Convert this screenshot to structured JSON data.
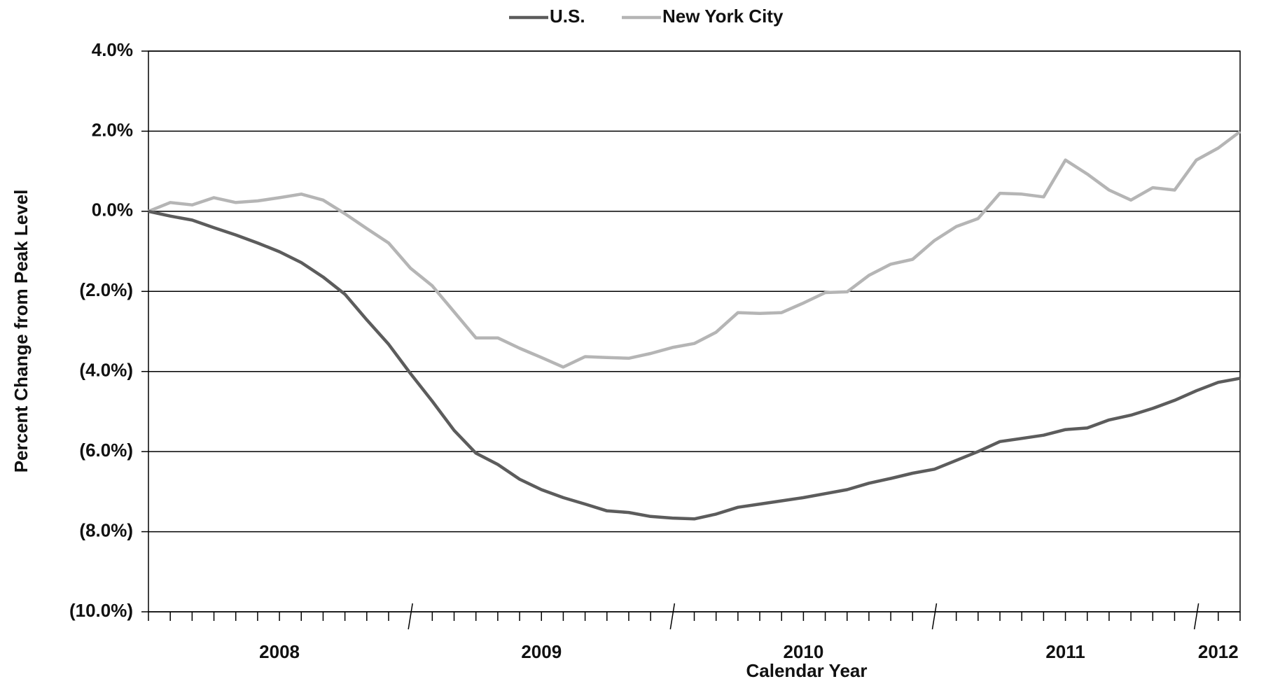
{
  "chart_data": {
    "type": "line",
    "x_label": "Calendar Year",
    "y_label": "Percent Change from Peak Level",
    "categories": [
      null,
      null,
      null,
      null,
      null,
      null,
      "2008",
      null,
      null,
      null,
      null,
      null,
      null,
      null,
      null,
      null,
      null,
      null,
      "2009",
      null,
      null,
      null,
      null,
      null,
      null,
      null,
      null,
      null,
      null,
      null,
      "2010",
      null,
      null,
      null,
      null,
      null,
      null,
      null,
      null,
      null,
      null,
      null,
      "2011",
      null,
      null,
      null,
      null,
      null,
      null,
      "2012",
      null
    ],
    "series": [
      {
        "name": "U.S.",
        "color": "#5c5c5c",
        "values": [
          0,
          -0.12,
          -0.22,
          -0.41,
          -0.59,
          -0.79,
          -1.01,
          -1.28,
          -1.64,
          -2.07,
          -2.71,
          -3.32,
          -4.05,
          -4.74,
          -5.47,
          -6.04,
          -6.32,
          -6.69,
          -6.95,
          -7.15,
          -7.31,
          -7.48,
          -7.52,
          -7.62,
          -7.66,
          -7.68,
          -7.56,
          -7.39,
          -7.31,
          -7.23,
          -7.15,
          -7.05,
          -6.95,
          -6.79,
          -6.67,
          -6.54,
          -6.44,
          -6.22,
          -6.0,
          -5.75,
          -5.67,
          -5.59,
          -5.45,
          -5.41,
          -5.21,
          -5.09,
          -4.92,
          -4.72,
          -4.48,
          -4.27,
          -4.17
        ]
      },
      {
        "name": "New York City",
        "color": "#b5b5b5",
        "values": [
          0,
          0.22,
          0.16,
          0.34,
          0.22,
          0.26,
          0.34,
          0.43,
          0.28,
          -0.06,
          -0.43,
          -0.79,
          -1.42,
          -1.86,
          -2.51,
          -3.16,
          -3.16,
          -3.42,
          -3.65,
          -3.89,
          -3.63,
          -3.65,
          -3.67,
          -3.55,
          -3.4,
          -3.3,
          -3.02,
          -2.53,
          -2.55,
          -2.53,
          -2.29,
          -2.03,
          -2.01,
          -1.6,
          -1.32,
          -1.2,
          -0.73,
          -0.38,
          -0.18,
          0.45,
          0.43,
          0.36,
          1.28,
          0.93,
          0.53,
          0.28,
          0.59,
          0.53,
          1.28,
          1.58,
          1.99
        ]
      }
    ],
    "ylim": [
      -10,
      4
    ],
    "yticks": [
      {
        "value": -10,
        "label": "(10.0%)"
      },
      {
        "value": -8,
        "label": "(8.0%)"
      },
      {
        "value": -6,
        "label": "(6.0%)"
      },
      {
        "value": -4,
        "label": "(4.0%)"
      },
      {
        "value": -2,
        "label": "(2.0%)"
      },
      {
        "value": 0,
        "label": "0.0%"
      },
      {
        "value": 2,
        "label": "2.0%"
      },
      {
        "value": 4,
        "label": "4.0%"
      }
    ],
    "grid": true,
    "legend": "top"
  }
}
